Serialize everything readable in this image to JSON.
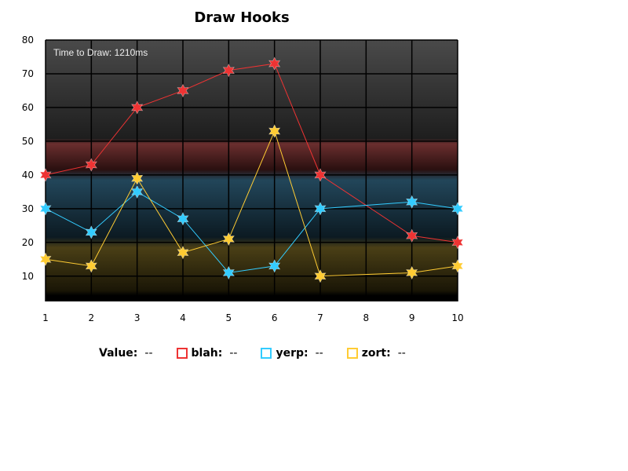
{
  "chart_data": {
    "type": "line",
    "title": "Draw Hooks",
    "annotation": "Time to Draw: 1210ms",
    "x": [
      1,
      2,
      3,
      4,
      5,
      6,
      7,
      8,
      9,
      10
    ],
    "xticks": [
      "1",
      "2",
      "3",
      "4",
      "5",
      "6",
      "7",
      "8",
      "9",
      "10"
    ],
    "xlim": [
      1,
      10
    ],
    "ylim": [
      2.5,
      80
    ],
    "yticks": [
      10,
      20,
      30,
      40,
      50,
      60,
      70,
      80
    ],
    "grid": true,
    "series": [
      {
        "name": "blah",
        "color": "#ee3333",
        "x": [
          1,
          2,
          3,
          4,
          5,
          6,
          7,
          9,
          10
        ],
        "values": [
          40,
          43,
          60,
          65,
          71,
          73,
          40,
          22,
          20
        ]
      },
      {
        "name": "yerp",
        "color": "#33ccff",
        "x": [
          1,
          2,
          3,
          4,
          5,
          6,
          7,
          9,
          10
        ],
        "values": [
          30,
          23,
          35,
          27,
          11,
          13,
          30,
          32,
          30
        ]
      },
      {
        "name": "zort",
        "color": "#ffcc33",
        "x": [
          1,
          2,
          3,
          4,
          5,
          6,
          7,
          9,
          10
        ],
        "values": [
          15,
          13,
          39,
          17,
          21,
          53,
          10,
          11,
          13
        ]
      }
    ],
    "bands": [
      {
        "from": 50,
        "to": 80,
        "color": "#555555"
      },
      {
        "from": 40,
        "to": 50,
        "color": "#6a2e2e"
      },
      {
        "from": 20,
        "to": 40,
        "color": "#22465a"
      },
      {
        "from": 5,
        "to": 20,
        "color": "#4a3f16"
      }
    ]
  },
  "legend": {
    "value_label": "Value:",
    "placeholder": "--",
    "items": [
      {
        "label": "blah:",
        "color": "#ee3333"
      },
      {
        "label": "yerp:",
        "color": "#33ccff"
      },
      {
        "label": "zort:",
        "color": "#ffcc33"
      }
    ]
  }
}
